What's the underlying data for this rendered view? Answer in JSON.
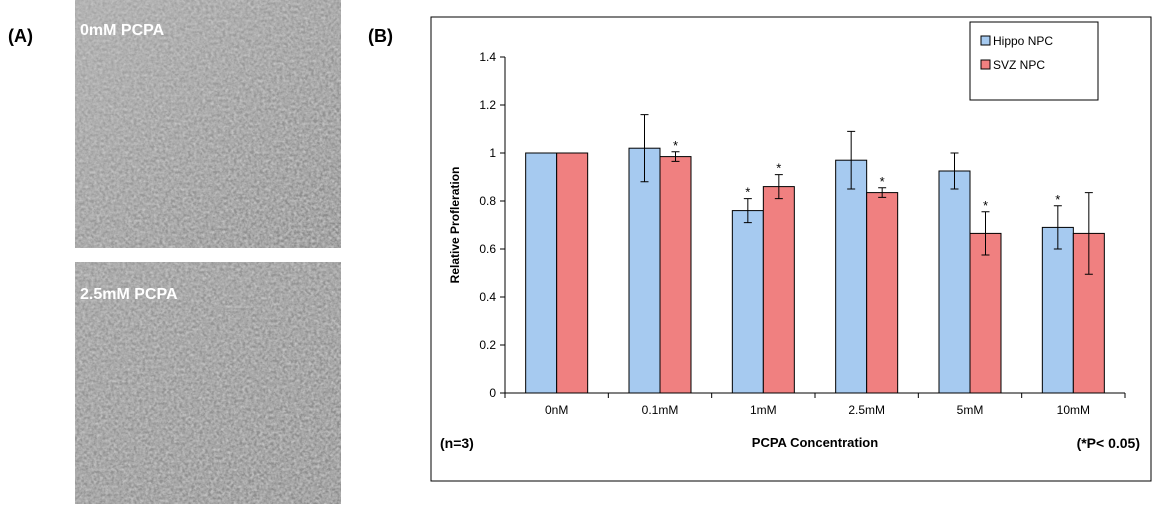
{
  "panel_a": {
    "label": "(A)",
    "images": [
      {
        "caption": "0mM PCPA"
      },
      {
        "caption": "2.5mM PCPA"
      }
    ]
  },
  "panel_b": {
    "label": "(B)",
    "sample_note": "(n=3)",
    "significance_note": "(*P< 0.05)"
  },
  "chart_data": {
    "type": "bar",
    "x_label": "PCPA Concentration",
    "y_label": "Relative Profleration",
    "categories": [
      "0nM",
      "0.1mM",
      "1mM",
      "2.5mM",
      "5mM",
      "10mM"
    ],
    "significance_marker": "*",
    "series": [
      {
        "name": "Hippo NPC",
        "color": "#a6caf0",
        "values": [
          1,
          1.02,
          0.76,
          0.97,
          0.925,
          0.69
        ],
        "errors": [
          0,
          0.14,
          0.05,
          0.12,
          0.075,
          0.09
        ],
        "significant": [
          false,
          false,
          true,
          false,
          false,
          true
        ]
      },
      {
        "name": "SVZ NPC",
        "color": "#f08080",
        "values": [
          1,
          0.985,
          0.86,
          0.835,
          0.665,
          0.665
        ],
        "errors": [
          0,
          0.02,
          0.05,
          0.02,
          0.09,
          0.17
        ],
        "significant": [
          false,
          true,
          true,
          true,
          true,
          false
        ]
      }
    ],
    "ylim": [
      0,
      1.4
    ],
    "yticks": [
      0,
      0.2,
      0.4,
      0.6,
      0.8,
      1,
      {
        "value": 1.2,
        "label": "1.2"
      },
      {
        "value": 1.4,
        "label": "1.4"
      }
    ],
    "legend": "upper right",
    "grid": false
  }
}
